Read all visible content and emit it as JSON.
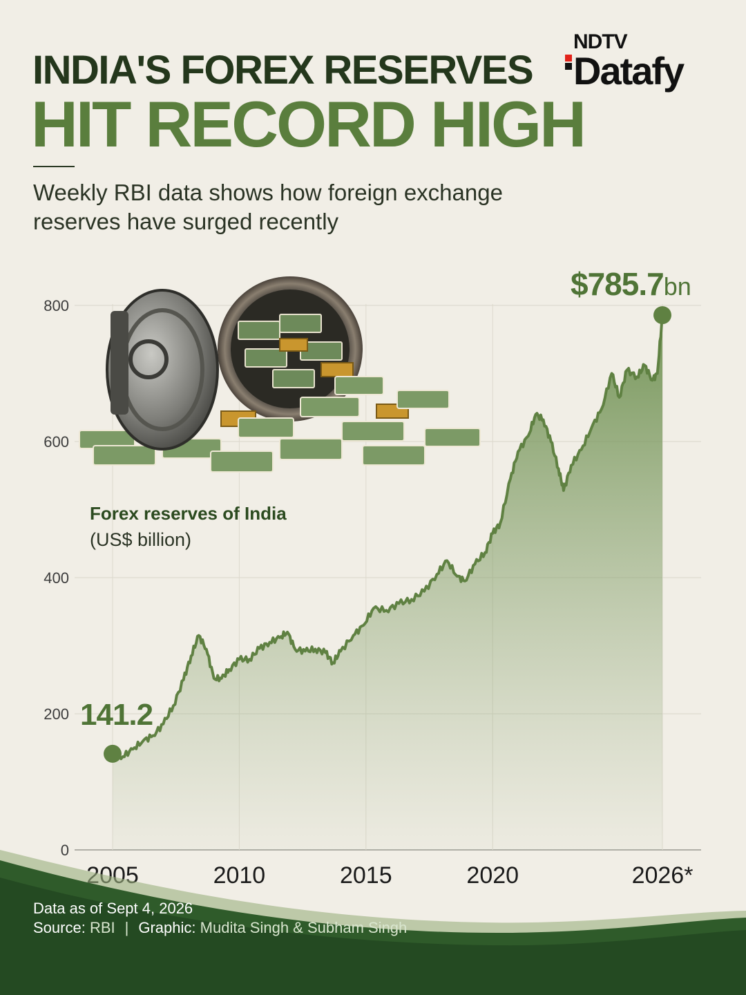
{
  "header": {
    "title_line1": "INDIA'S FOREX RESERVES",
    "title_line2": "HIT RECORD HIGH",
    "subtitle": "Weekly RBI data shows how foreign exchange reserves have surged recently"
  },
  "brand": {
    "top": "NDTV",
    "bottom": "Datafy"
  },
  "colors": {
    "title_dark": "#24371c",
    "title_accent": "#5a7e3d",
    "line": "#5f8142",
    "area_top": "#6f9152",
    "background": "#f1eee6",
    "footer_wave": "#2f5b2a"
  },
  "illustration": "bank-vault-with-cash-and-gold-icon",
  "chart_data": {
    "type": "area",
    "title": "Forex reserves of India",
    "unit_label": "(US$ billion)",
    "xlabel": "",
    "ylabel": "",
    "x_ticks": [
      "2005",
      "2010",
      "2015",
      "2020",
      "2026*"
    ],
    "y_ticks": [
      "0",
      "200",
      "400",
      "600",
      "800"
    ],
    "xlim": [
      2005,
      2026.7
    ],
    "ylim": [
      0,
      800
    ],
    "grid": true,
    "series": [
      {
        "values_note_unit": "US$ billion",
        "points": [
          [
            2005.0,
            141.2
          ],
          [
            2005.4,
            137
          ],
          [
            2005.8,
            148
          ],
          [
            2006.2,
            160
          ],
          [
            2006.6,
            168
          ],
          [
            2007.0,
            185
          ],
          [
            2007.4,
            212
          ],
          [
            2007.8,
            250
          ],
          [
            2008.1,
            285
          ],
          [
            2008.4,
            315
          ],
          [
            2008.7,
            295
          ],
          [
            2009.0,
            252
          ],
          [
            2009.3,
            252
          ],
          [
            2009.6,
            265
          ],
          [
            2010.0,
            280
          ],
          [
            2010.4,
            280
          ],
          [
            2010.8,
            296
          ],
          [
            2011.2,
            305
          ],
          [
            2011.6,
            312
          ],
          [
            2011.9,
            320
          ],
          [
            2012.2,
            295
          ],
          [
            2012.6,
            292
          ],
          [
            2013.0,
            295
          ],
          [
            2013.4,
            290
          ],
          [
            2013.7,
            275
          ],
          [
            2014.0,
            292
          ],
          [
            2014.5,
            315
          ],
          [
            2014.9,
            330
          ],
          [
            2015.3,
            355
          ],
          [
            2015.8,
            352
          ],
          [
            2016.3,
            362
          ],
          [
            2016.8,
            368
          ],
          [
            2017.3,
            380
          ],
          [
            2017.8,
            405
          ],
          [
            2018.2,
            425
          ],
          [
            2018.6,
            402
          ],
          [
            2018.9,
            395
          ],
          [
            2019.3,
            420
          ],
          [
            2019.7,
            437
          ],
          [
            2020.0,
            465
          ],
          [
            2020.3,
            480
          ],
          [
            2020.7,
            545
          ],
          [
            2021.0,
            585
          ],
          [
            2021.4,
            608
          ],
          [
            2021.7,
            640
          ],
          [
            2022.0,
            632
          ],
          [
            2022.3,
            600
          ],
          [
            2022.6,
            560
          ],
          [
            2022.8,
            528
          ],
          [
            2023.1,
            565
          ],
          [
            2023.5,
            588
          ],
          [
            2023.9,
            620
          ],
          [
            2024.3,
            648
          ],
          [
            2024.7,
            700
          ],
          [
            2025.0,
            665
          ],
          [
            2025.3,
            705
          ],
          [
            2025.7,
            695
          ],
          [
            2026.0,
            712
          ],
          [
            2026.3,
            690
          ],
          [
            2026.5,
            700
          ],
          [
            2026.7,
            785.7
          ]
        ]
      }
    ],
    "annotations": {
      "start_value": "141.2",
      "end_value": "$785.7",
      "end_unit": "bn"
    }
  },
  "footer": {
    "line1": "Data as of Sept 4, 2026",
    "source_key": "Source:",
    "source_value": "RBI",
    "separator": "|",
    "graphic_key": "Graphic:",
    "graphic_value": "Mudita Singh & Subham Singh"
  }
}
